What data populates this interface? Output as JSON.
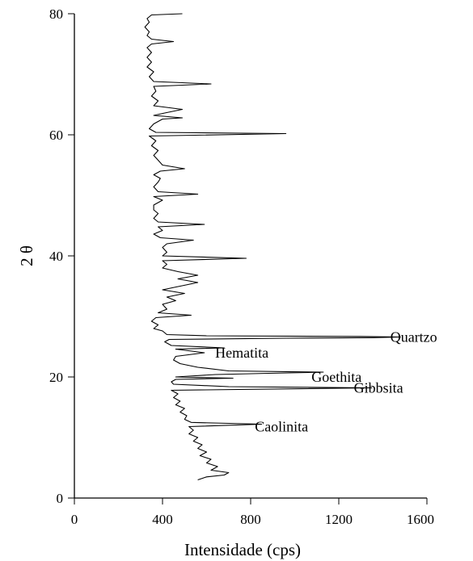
{
  "chart_data": {
    "type": "line",
    "title": "",
    "xlabel": "Intensidade (cps)",
    "ylabel": "2 θ",
    "xlim": [
      0,
      1600
    ],
    "ylim": [
      0,
      80
    ],
    "x_ticks": [
      "0",
      "400",
      "800",
      "1200",
      "1600"
    ],
    "y_ticks": [
      "0",
      "20",
      "40",
      "60",
      "80"
    ],
    "grid": false,
    "line_color": "#000000",
    "annotations": [
      {
        "label": "Quartzo",
        "x": 1540,
        "y": 26.6
      },
      {
        "label": "Hematita",
        "x": 760,
        "y": 24.0
      },
      {
        "label": "Goethita",
        "x": 1190,
        "y": 20.0
      },
      {
        "label": "Gibbsita",
        "x": 1380,
        "y": 18.2
      },
      {
        "label": "Caolinita",
        "x": 940,
        "y": 11.8
      }
    ],
    "series": [
      {
        "points": [
          [
            560,
            3.0
          ],
          [
            600,
            3.5
          ],
          [
            680,
            3.8
          ],
          [
            700,
            4.2
          ],
          [
            620,
            4.6
          ],
          [
            650,
            5.2
          ],
          [
            600,
            5.8
          ],
          [
            620,
            6.4
          ],
          [
            570,
            7.0
          ],
          [
            600,
            7.6
          ],
          [
            560,
            8.2
          ],
          [
            580,
            8.8
          ],
          [
            540,
            9.4
          ],
          [
            560,
            10.0
          ],
          [
            520,
            10.6
          ],
          [
            540,
            11.2
          ],
          [
            520,
            11.8
          ],
          [
            850,
            12.2
          ],
          [
            530,
            12.5
          ],
          [
            500,
            13.0
          ],
          [
            510,
            13.6
          ],
          [
            480,
            14.2
          ],
          [
            500,
            14.8
          ],
          [
            460,
            15.4
          ],
          [
            480,
            16.0
          ],
          [
            450,
            16.6
          ],
          [
            470,
            17.2
          ],
          [
            440,
            17.8
          ],
          [
            1350,
            18.2
          ],
          [
            700,
            18.4
          ],
          [
            450,
            18.8
          ],
          [
            440,
            19.2
          ],
          [
            460,
            19.6
          ],
          [
            720,
            19.8
          ],
          [
            460,
            20.0
          ],
          [
            640,
            20.4
          ],
          [
            880,
            20.6
          ],
          [
            1130,
            20.8
          ],
          [
            700,
            21.0
          ],
          [
            560,
            21.6
          ],
          [
            480,
            22.2
          ],
          [
            450,
            22.8
          ],
          [
            460,
            23.4
          ],
          [
            590,
            24.0
          ],
          [
            460,
            24.6
          ],
          [
            680,
            24.8
          ],
          [
            440,
            25.2
          ],
          [
            410,
            25.8
          ],
          [
            430,
            26.2
          ],
          [
            960,
            26.4
          ],
          [
            1360,
            26.5
          ],
          [
            1480,
            26.6
          ],
          [
            1300,
            26.7
          ],
          [
            600,
            26.8
          ],
          [
            420,
            27.0
          ],
          [
            400,
            27.6
          ],
          [
            360,
            28.0
          ],
          [
            380,
            28.6
          ],
          [
            350,
            29.2
          ],
          [
            370,
            29.8
          ],
          [
            530,
            30.2
          ],
          [
            380,
            30.6
          ],
          [
            420,
            31.2
          ],
          [
            400,
            32.0
          ],
          [
            460,
            32.6
          ],
          [
            420,
            33.2
          ],
          [
            500,
            33.8
          ],
          [
            400,
            34.4
          ],
          [
            480,
            35.0
          ],
          [
            560,
            35.6
          ],
          [
            470,
            36.2
          ],
          [
            560,
            36.8
          ],
          [
            470,
            37.4
          ],
          [
            400,
            38.0
          ],
          [
            420,
            38.6
          ],
          [
            400,
            39.2
          ],
          [
            780,
            39.6
          ],
          [
            400,
            40.0
          ],
          [
            420,
            40.6
          ],
          [
            400,
            41.4
          ],
          [
            420,
            42.0
          ],
          [
            540,
            42.6
          ],
          [
            390,
            43.0
          ],
          [
            360,
            43.6
          ],
          [
            400,
            44.2
          ],
          [
            380,
            44.8
          ],
          [
            590,
            45.2
          ],
          [
            380,
            45.6
          ],
          [
            360,
            46.2
          ],
          [
            380,
            47.0
          ],
          [
            360,
            47.6
          ],
          [
            360,
            48.4
          ],
          [
            400,
            49.2
          ],
          [
            360,
            49.8
          ],
          [
            560,
            50.2
          ],
          [
            380,
            50.6
          ],
          [
            360,
            51.4
          ],
          [
            380,
            52.2
          ],
          [
            390,
            52.8
          ],
          [
            360,
            53.4
          ],
          [
            390,
            54.0
          ],
          [
            500,
            54.4
          ],
          [
            400,
            55.0
          ],
          [
            380,
            55.8
          ],
          [
            360,
            56.6
          ],
          [
            380,
            57.4
          ],
          [
            350,
            58.2
          ],
          [
            370,
            59.0
          ],
          [
            340,
            59.8
          ],
          [
            960,
            60.2
          ],
          [
            370,
            60.4
          ],
          [
            340,
            61.0
          ],
          [
            360,
            61.8
          ],
          [
            400,
            62.6
          ],
          [
            490,
            62.8
          ],
          [
            360,
            63.2
          ],
          [
            410,
            63.6
          ],
          [
            490,
            64.2
          ],
          [
            360,
            64.8
          ],
          [
            380,
            65.6
          ],
          [
            350,
            66.4
          ],
          [
            370,
            67.2
          ],
          [
            360,
            68.0
          ],
          [
            620,
            68.4
          ],
          [
            360,
            68.8
          ],
          [
            340,
            69.6
          ],
          [
            360,
            70.4
          ],
          [
            330,
            71.2
          ],
          [
            350,
            72.0
          ],
          [
            330,
            72.8
          ],
          [
            350,
            73.6
          ],
          [
            330,
            74.4
          ],
          [
            350,
            75.0
          ],
          [
            450,
            75.4
          ],
          [
            350,
            75.8
          ],
          [
            330,
            76.4
          ],
          [
            340,
            77.0
          ],
          [
            320,
            77.8
          ],
          [
            340,
            78.6
          ],
          [
            330,
            79.2
          ],
          [
            350,
            79.8
          ],
          [
            490,
            80.0
          ]
        ]
      }
    ]
  }
}
